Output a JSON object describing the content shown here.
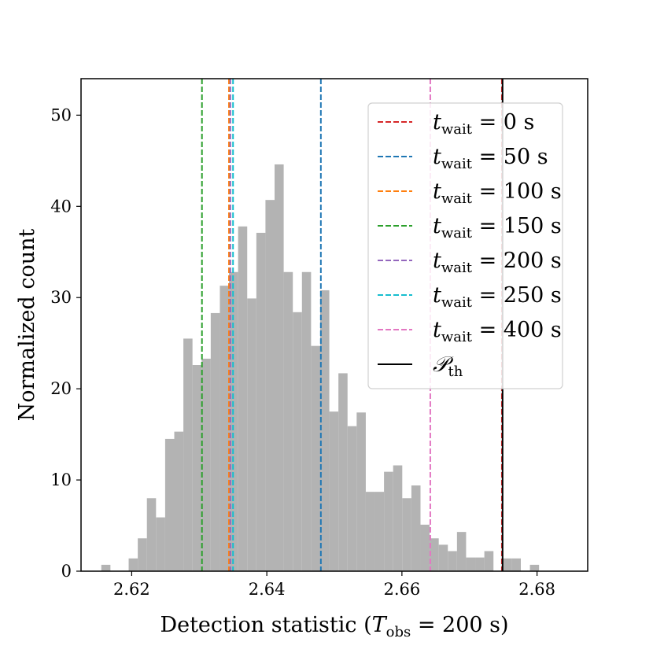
{
  "chart_data": {
    "type": "histogram",
    "xlabel": "Detection statistic (T_obs = 200 s)",
    "xlabel_parts": {
      "prefix": "Detection statistic (",
      "var": "T",
      "sub": "obs",
      "suffix": " = 200 s)"
    },
    "ylabel": "Normalized count",
    "xlim": [
      2.6125,
      2.6875
    ],
    "ylim": [
      0,
      54
    ],
    "xticks": [
      2.62,
      2.64,
      2.66,
      2.68
    ],
    "xtick_labels": [
      "2.62",
      "2.64",
      "2.66",
      "2.68"
    ],
    "yticks": [
      0,
      10,
      20,
      30,
      40,
      50
    ],
    "ytick_labels": [
      "0",
      "10",
      "20",
      "30",
      "40",
      "50"
    ],
    "bin_start": 2.6155,
    "bin_width": 0.00135,
    "bar_color": "#b3b3b3",
    "values": [
      0.7,
      0,
      0,
      1.4,
      3.6,
      8.0,
      5.9,
      14.5,
      15.3,
      25.5,
      22.6,
      23.3,
      28.3,
      31.3,
      32.8,
      37.8,
      29.9,
      37.1,
      40.7,
      44.6,
      32.8,
      28.4,
      32.8,
      24.7,
      30.8,
      17.5,
      21.7,
      15.9,
      17.4,
      8.7,
      8.7,
      10.9,
      11.6,
      8.0,
      9.4,
      5.1,
      3.6,
      2.9,
      2.2,
      4.3,
      1.5,
      1.5,
      2.2,
      0,
      1.4,
      1.4,
      0,
      0.7
    ],
    "vlines": [
      {
        "name": "t_wait = 0 s",
        "x": 2.6748,
        "color": "#d62728",
        "style": "dashed"
      },
      {
        "name": "t_wait = 50 s",
        "x": 2.648,
        "color": "#1f77b4",
        "style": "dashed"
      },
      {
        "name": "t_wait = 100 s",
        "x": 2.6344,
        "color": "#ff7f0e",
        "style": "dashed"
      },
      {
        "name": "t_wait = 150 s",
        "x": 2.6304,
        "color": "#2ca02c",
        "style": "dashed"
      },
      {
        "name": "t_wait = 200 s",
        "x": 2.6346,
        "color": "#9467bd",
        "style": "dashed"
      },
      {
        "name": "t_wait = 250 s",
        "x": 2.635,
        "color": "#17becf",
        "style": "dashed"
      },
      {
        "name": "t_wait = 400 s",
        "x": 2.6642,
        "color": "#e377c2",
        "style": "dashed"
      },
      {
        "name": "P_th",
        "x": 2.6749,
        "color": "#000000",
        "style": "solid"
      }
    ],
    "legend": {
      "position": "top-right",
      "entries": [
        {
          "var": "t",
          "sub": "wait",
          "rest": " = 0 s",
          "color": "#d62728",
          "style": "dashed"
        },
        {
          "var": "t",
          "sub": "wait",
          "rest": " = 50 s",
          "color": "#1f77b4",
          "style": "dashed"
        },
        {
          "var": "t",
          "sub": "wait",
          "rest": " = 100 s",
          "color": "#ff7f0e",
          "style": "dashed"
        },
        {
          "var": "t",
          "sub": "wait",
          "rest": " = 150 s",
          "color": "#2ca02c",
          "style": "dashed"
        },
        {
          "var": "t",
          "sub": "wait",
          "rest": " = 200 s",
          "color": "#9467bd",
          "style": "dashed"
        },
        {
          "var": "t",
          "sub": "wait",
          "rest": " = 250 s",
          "color": "#17becf",
          "style": "dashed"
        },
        {
          "var": "t",
          "sub": "wait",
          "rest": " = 400 s",
          "color": "#e377c2",
          "style": "dashed"
        },
        {
          "var": "𝒫",
          "sub": "th",
          "rest": "",
          "color": "#000000",
          "style": "solid"
        }
      ]
    }
  }
}
